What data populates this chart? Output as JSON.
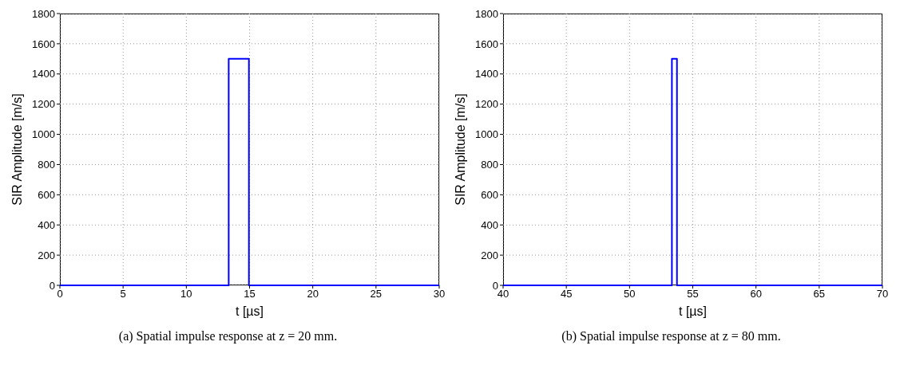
{
  "chart_data": [
    {
      "type": "line",
      "xlabel": "t [µs]",
      "ylabel": "SIR Amplitude [m/s]",
      "x": [
        0,
        13.35,
        13.35,
        14.95,
        14.95,
        30
      ],
      "series": [
        {
          "color": "#0000ff",
          "values": [
            0,
            0,
            1500,
            1500,
            0,
            0
          ]
        }
      ],
      "xlim": [
        0,
        30
      ],
      "xticks": [
        0,
        5,
        10,
        15,
        20,
        25,
        30
      ],
      "ylim": [
        0,
        1800
      ],
      "yticks": [
        0,
        200,
        400,
        600,
        800,
        1000,
        1200,
        1400,
        1600,
        1800
      ],
      "grid": true,
      "marker": "none",
      "line_style": "solid",
      "annotations": [
        "(a) Spatial impulse response at z = 20 mm."
      ]
    },
    {
      "type": "line",
      "xlabel": "t [µs]",
      "ylabel": "SIR Amplitude [m/s]",
      "x": [
        40,
        53.35,
        53.35,
        53.75,
        53.75,
        70
      ],
      "series": [
        {
          "color": "#0000ff",
          "values": [
            0,
            0,
            1500,
            1500,
            0,
            0
          ]
        }
      ],
      "xlim": [
        40,
        70
      ],
      "xticks": [
        40,
        45,
        50,
        55,
        60,
        65,
        70
      ],
      "ylim": [
        0,
        1800
      ],
      "yticks": [
        0,
        200,
        400,
        600,
        800,
        1000,
        1200,
        1400,
        1600,
        1800
      ],
      "grid": true,
      "marker": "none",
      "line_style": "solid",
      "annotations": [
        "(b) Spatial impulse response at z = 80 mm."
      ]
    }
  ]
}
